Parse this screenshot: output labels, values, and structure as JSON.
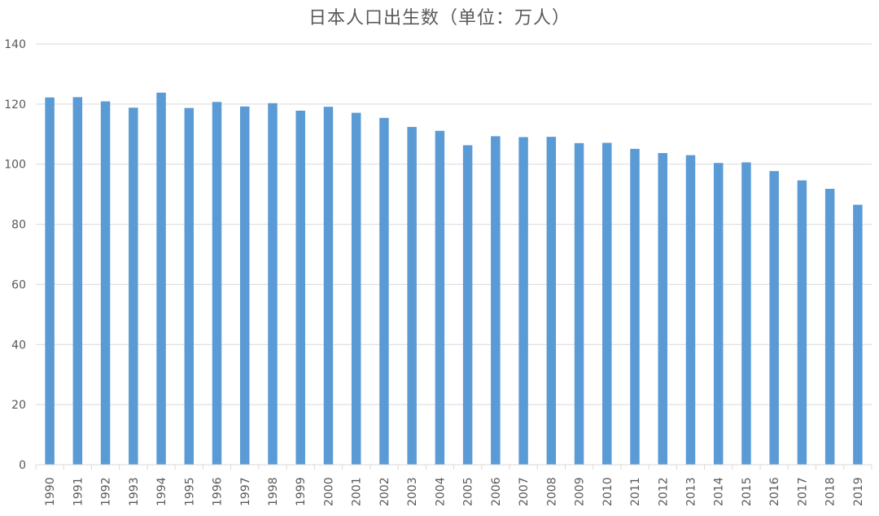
{
  "chart_data": {
    "type": "bar",
    "title": "日本人口出生数（单位：万人）",
    "xlabel": "",
    "ylabel": "",
    "ylim": [
      0,
      140
    ],
    "yticks": [
      0,
      20,
      40,
      60,
      80,
      100,
      120,
      140
    ],
    "grid": true,
    "legend": "none",
    "categories": [
      "1990",
      "1991",
      "1992",
      "1993",
      "1994",
      "1995",
      "1996",
      "1997",
      "1998",
      "1999",
      "2000",
      "2001",
      "2002",
      "2003",
      "2004",
      "2005",
      "2006",
      "2007",
      "2008",
      "2009",
      "2010",
      "2011",
      "2012",
      "2013",
      "2014",
      "2015",
      "2016",
      "2017",
      "2018",
      "2019"
    ],
    "values": [
      122.2,
      122.3,
      120.9,
      118.8,
      123.8,
      118.7,
      120.7,
      119.2,
      120.3,
      117.8,
      119.1,
      117.1,
      115.4,
      112.4,
      111.1,
      106.3,
      109.3,
      109.0,
      109.1,
      107.0,
      107.1,
      105.1,
      103.7,
      103.0,
      100.4,
      100.6,
      97.7,
      94.6,
      91.8,
      86.5
    ],
    "colors": {
      "bar": "#5B9BD5",
      "grid": "#D9D9D9",
      "axis_text": "#595959"
    }
  }
}
